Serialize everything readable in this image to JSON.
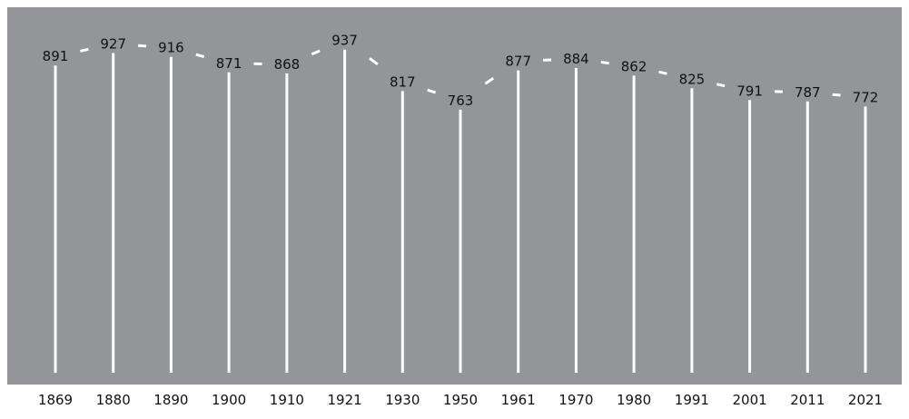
{
  "chart_data": {
    "type": "bar",
    "categories": [
      "1869",
      "1880",
      "1890",
      "1900",
      "1910",
      "1921",
      "1930",
      "1950",
      "1961",
      "1970",
      "1980",
      "1991",
      "2001",
      "2011",
      "2021"
    ],
    "values": [
      891,
      927,
      916,
      871,
      868,
      937,
      817,
      763,
      877,
      884,
      862,
      825,
      791,
      787,
      772
    ],
    "title": "",
    "xlabel": "",
    "ylabel": "",
    "ylim": [
      0,
      960
    ],
    "data_labels": true,
    "grid": false,
    "legend": "none",
    "background_color": "#939598",
    "bar_color": "#ffffff",
    "connector_color": "#ffffff",
    "text_color": "#111111"
  }
}
